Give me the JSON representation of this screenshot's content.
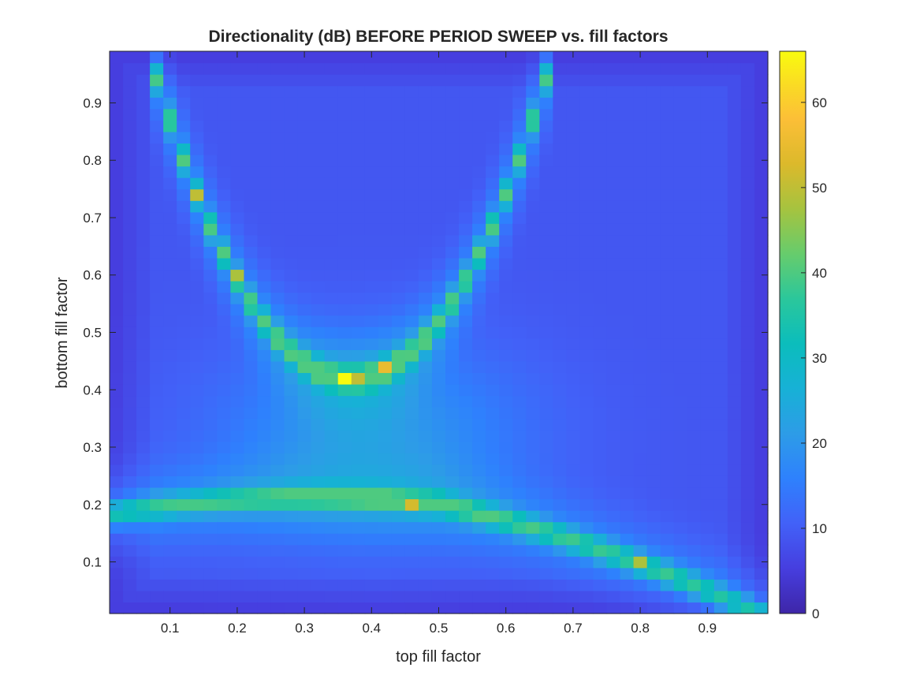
{
  "chart_data": {
    "type": "heatmap",
    "title": "Directionality (dB) BEFORE PERIOD SWEEP vs. fill factors",
    "xlabel": "top fill factor",
    "ylabel": "bottom fill factor",
    "xlim": [
      0.01,
      0.99
    ],
    "ylim": [
      0.01,
      0.99
    ],
    "grid": {
      "nx": 49,
      "ny": 49,
      "x_start": 0.02,
      "y_start": 0.02,
      "step": 0.02
    },
    "x_ticks": [
      "0.1",
      "0.2",
      "0.3",
      "0.4",
      "0.5",
      "0.6",
      "0.7",
      "0.8",
      "0.9"
    ],
    "y_ticks": [
      "0.1",
      "0.2",
      "0.3",
      "0.4",
      "0.5",
      "0.6",
      "0.7",
      "0.8",
      "0.9"
    ],
    "colorbar": {
      "range": [
        0,
        66
      ],
      "ticks": [
        "0",
        "10",
        "20",
        "30",
        "40",
        "50",
        "60"
      ],
      "colormap": "parula"
    },
    "description_values": {
      "background_dB_range": [
        2,
        18
      ],
      "ridge_dB_typical": 35,
      "peak": {
        "x": 0.36,
        "y": 0.42,
        "value": 66
      },
      "hotspots": [
        {
          "x": 0.36,
          "y": 0.42,
          "value": 66
        },
        {
          "x": 0.42,
          "y": 0.44,
          "value": 55
        },
        {
          "x": 0.38,
          "y": 0.42,
          "value": 50
        },
        {
          "x": 0.46,
          "y": 0.2,
          "value": 52
        },
        {
          "x": 0.14,
          "y": 0.74,
          "value": 50
        },
        {
          "x": 0.2,
          "y": 0.6,
          "value": 48
        },
        {
          "x": 0.8,
          "y": 0.1,
          "value": 48
        }
      ]
    }
  }
}
